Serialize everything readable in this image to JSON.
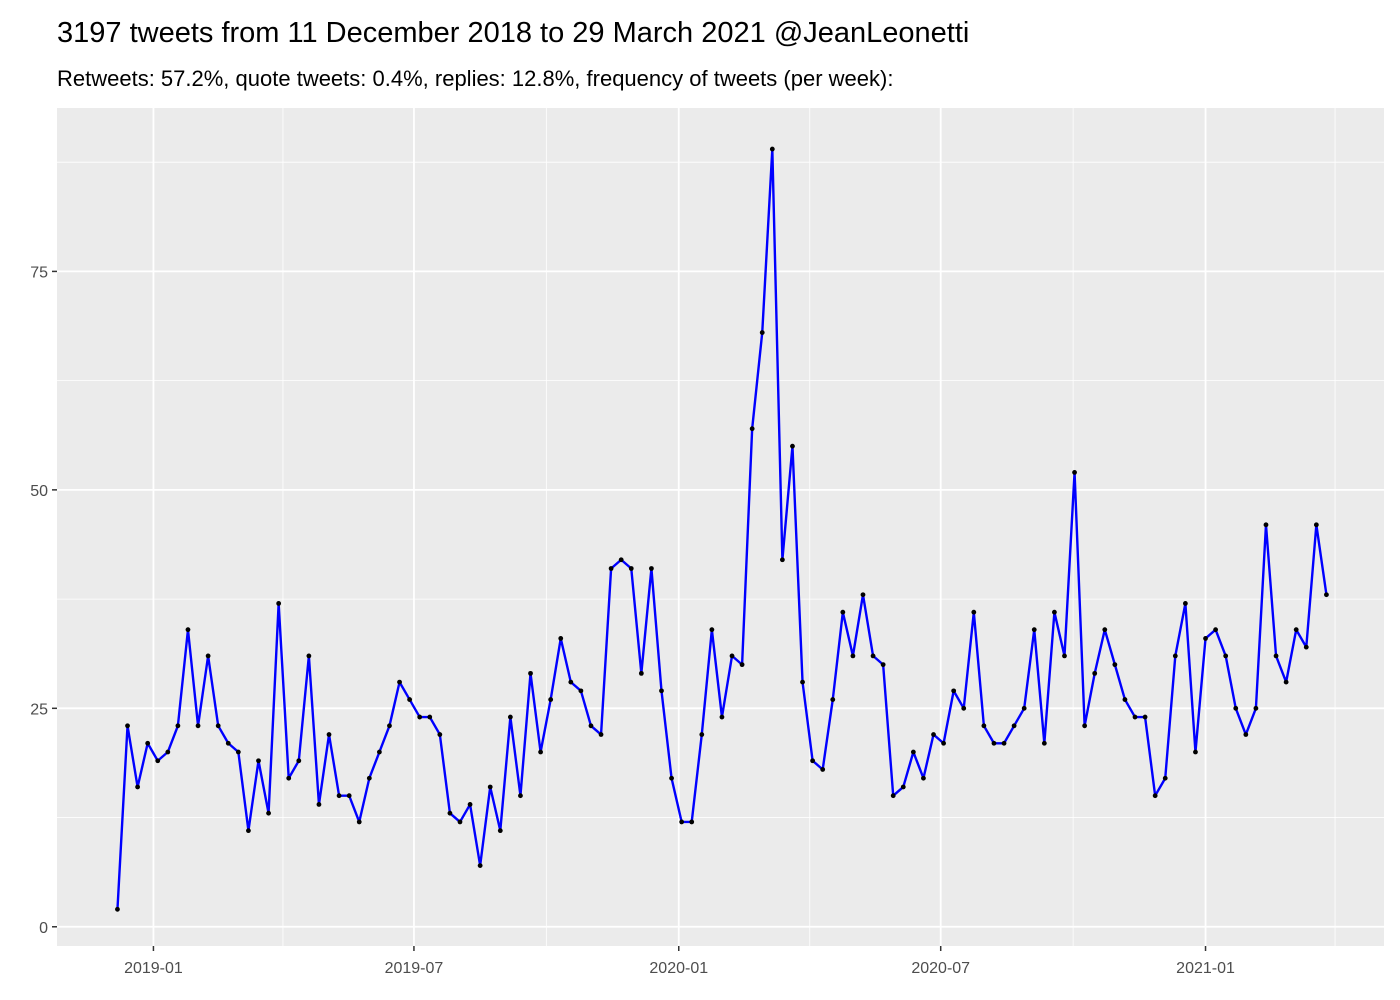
{
  "chart_data": {
    "type": "line",
    "title": "3197 tweets from 11 December 2018 to 29 March 2021 @JeanLeonetti",
    "subtitle": "Retweets: 57.2%, quote tweets: 0.4%, replies: 12.8%, frequency of tweets (per week):",
    "x": [
      "2018-12-07",
      "2018-12-14",
      "2018-12-21",
      "2018-12-28",
      "2019-01-04",
      "2019-01-11",
      "2019-01-18",
      "2019-01-25",
      "2019-02-01",
      "2019-02-08",
      "2019-02-15",
      "2019-02-22",
      "2019-03-01",
      "2019-03-08",
      "2019-03-15",
      "2019-03-22",
      "2019-03-29",
      "2019-04-05",
      "2019-04-12",
      "2019-04-19",
      "2019-04-26",
      "2019-05-03",
      "2019-05-10",
      "2019-05-17",
      "2019-05-24",
      "2019-05-31",
      "2019-06-07",
      "2019-06-14",
      "2019-06-21",
      "2019-06-28",
      "2019-07-05",
      "2019-07-12",
      "2019-07-19",
      "2019-07-26",
      "2019-08-02",
      "2019-08-09",
      "2019-08-16",
      "2019-08-23",
      "2019-08-30",
      "2019-09-06",
      "2019-09-13",
      "2019-09-20",
      "2019-09-27",
      "2019-10-04",
      "2019-10-11",
      "2019-10-18",
      "2019-10-25",
      "2019-11-01",
      "2019-11-08",
      "2019-11-15",
      "2019-11-22",
      "2019-11-29",
      "2019-12-06",
      "2019-12-13",
      "2019-12-20",
      "2019-12-27",
      "2020-01-03",
      "2020-01-10",
      "2020-01-17",
      "2020-01-24",
      "2020-01-31",
      "2020-02-07",
      "2020-02-14",
      "2020-02-21",
      "2020-02-28",
      "2020-03-06",
      "2020-03-13",
      "2020-03-20",
      "2020-03-27",
      "2020-04-03",
      "2020-04-10",
      "2020-04-17",
      "2020-04-24",
      "2020-05-01",
      "2020-05-08",
      "2020-05-15",
      "2020-05-22",
      "2020-05-29",
      "2020-06-05",
      "2020-06-12",
      "2020-06-19",
      "2020-06-26",
      "2020-07-03",
      "2020-07-10",
      "2020-07-17",
      "2020-07-24",
      "2020-07-31",
      "2020-08-07",
      "2020-08-14",
      "2020-08-21",
      "2020-08-28",
      "2020-09-04",
      "2020-09-11",
      "2020-09-18",
      "2020-09-25",
      "2020-10-02",
      "2020-10-09",
      "2020-10-16",
      "2020-10-23",
      "2020-10-30",
      "2020-11-06",
      "2020-11-13",
      "2020-11-20",
      "2020-11-27",
      "2020-12-04",
      "2020-12-11",
      "2020-12-18",
      "2020-12-25",
      "2021-01-01",
      "2021-01-08",
      "2021-01-15",
      "2021-01-22",
      "2021-01-29",
      "2021-02-05",
      "2021-02-12",
      "2021-02-19",
      "2021-02-26",
      "2021-03-05",
      "2021-03-12",
      "2021-03-19",
      "2021-03-26"
    ],
    "series": [
      {
        "color": "#0000ff",
        "point_color": "#000000",
        "values": [
          2,
          23,
          16,
          21,
          19,
          20,
          23,
          34,
          23,
          31,
          23,
          21,
          20,
          11,
          19,
          13,
          37,
          17,
          19,
          31,
          14,
          22,
          15,
          15,
          12,
          17,
          20,
          23,
          28,
          26,
          24,
          24,
          22,
          13,
          12,
          14,
          7,
          16,
          11,
          24,
          15,
          29,
          20,
          26,
          33,
          28,
          27,
          23,
          22,
          41,
          42,
          41,
          29,
          41,
          27,
          17,
          12,
          12,
          22,
          34,
          24,
          31,
          30,
          57,
          68,
          89,
          42,
          55,
          28,
          19,
          18,
          26,
          36,
          31,
          38,
          31,
          30,
          15,
          16,
          20,
          17,
          22,
          21,
          27,
          25,
          36,
          23,
          21,
          21,
          23,
          25,
          34,
          21,
          36,
          31,
          52,
          23,
          29,
          34,
          30,
          26,
          24,
          24,
          15,
          17,
          31,
          37,
          20,
          33,
          34,
          31,
          25,
          22,
          25,
          46,
          31,
          28,
          34,
          32,
          46,
          38
        ]
      }
    ],
    "xlim": [
      "2018-10-26",
      "2021-05-05"
    ],
    "xticks": [
      {
        "value": "2019-01-01",
        "label": "2019-01"
      },
      {
        "value": "2019-07-01",
        "label": "2019-07"
      },
      {
        "value": "2020-01-01",
        "label": "2020-01"
      },
      {
        "value": "2020-07-01",
        "label": "2020-07"
      },
      {
        "value": "2021-01-01",
        "label": "2021-01"
      }
    ],
    "x_minor_ticks": [
      "2019-04-01",
      "2019-10-01",
      "2020-04-01",
      "2020-10-01",
      "2021-04-01"
    ],
    "ylim": [
      -2.2,
      93.7
    ],
    "yticks": [
      0,
      25,
      50,
      75
    ],
    "y_minor_ticks": [
      12.5,
      37.5,
      62.5,
      87.5
    ],
    "grid": true
  }
}
